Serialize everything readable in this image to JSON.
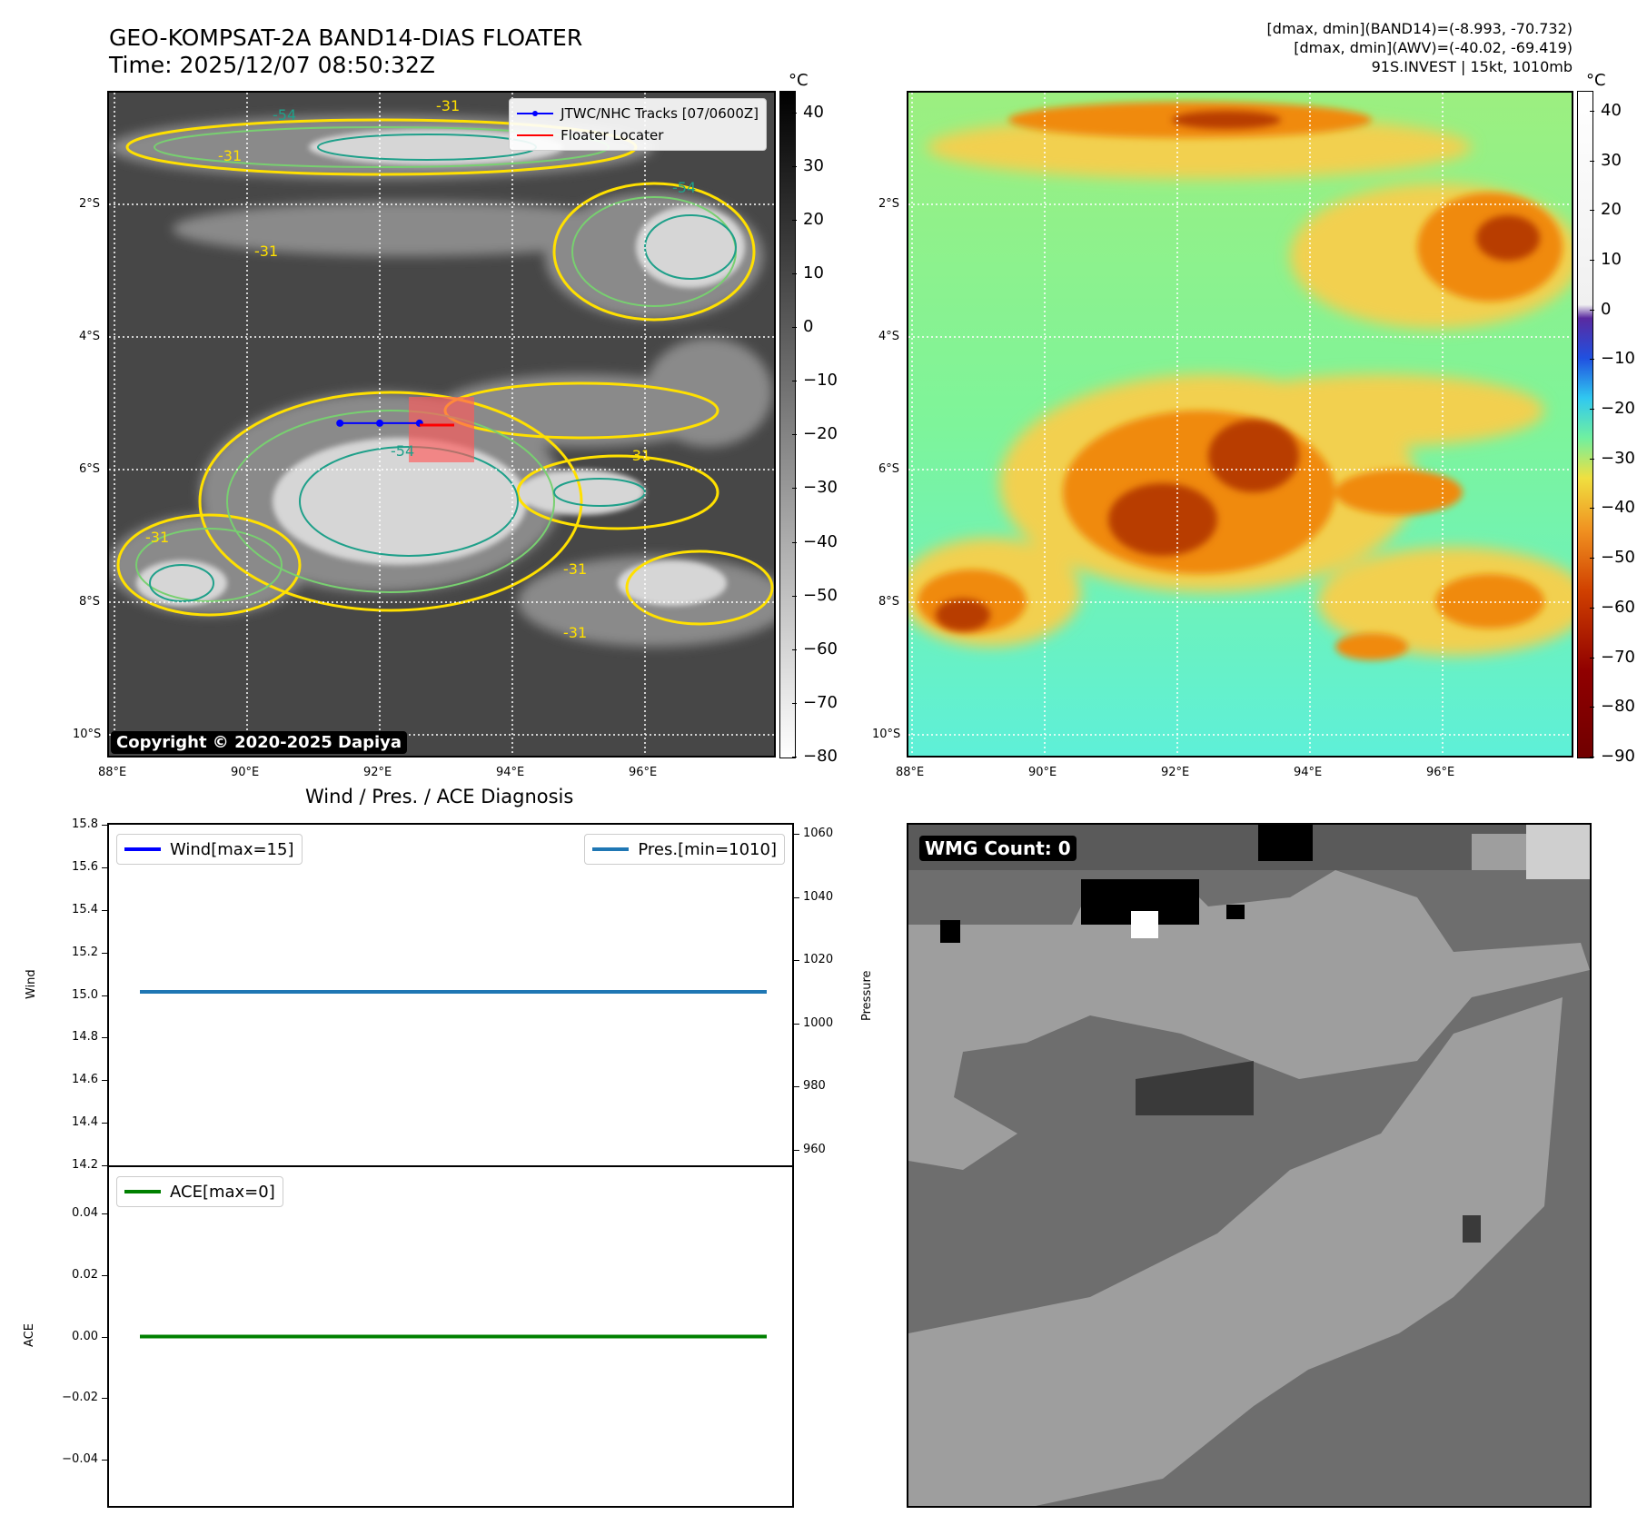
{
  "header": {
    "title_line1": "GEO-KOMPSAT-2A BAND14-DIAS FLOATER",
    "title_line2": "Time: 2025/12/07 08:50:32Z",
    "info_line1": "[dmax, dmin](BAND14)=(-8.993, -70.732)",
    "info_line2": "[dmax, dmin](AWV)=(-40.02, -69.419)",
    "info_line3": "91S.INVEST | 15kt, 1010mb"
  },
  "map_axes": {
    "lat_ticks": [
      "2°S",
      "4°S",
      "6°S",
      "8°S",
      "10°S"
    ],
    "lon_ticks": [
      "88°E",
      "90°E",
      "92°E",
      "94°E",
      "96°E"
    ]
  },
  "ir_panel": {
    "copyright": "Copyright © 2020-2025 Dapiya",
    "legend": [
      {
        "label": "JTWC/NHC Tracks [07/0600Z]",
        "color": "#0000ff"
      },
      {
        "label": "Floater Locater",
        "color": "#ff0000"
      }
    ],
    "contour_labels": [
      "-31",
      "-54"
    ],
    "track_points": [
      [
        91.4,
        -5.3
      ],
      [
        92.0,
        -5.3
      ],
      [
        92.6,
        -5.3
      ]
    ],
    "colorbar": {
      "unit": "°C",
      "ticks": [
        "40",
        "30",
        "20",
        "10",
        "0",
        "−10",
        "−20",
        "−30",
        "−40",
        "−50",
        "−60",
        "−70",
        "−80"
      ]
    }
  },
  "awv_panel": {
    "colorbar": {
      "unit": "°C",
      "ticks": [
        "40",
        "30",
        "20",
        "10",
        "0",
        "−10",
        "−20",
        "−30",
        "−40",
        "−50",
        "−60",
        "−70",
        "−80",
        "−90"
      ]
    }
  },
  "wmg_panel": {
    "badge": "WMG Count: 0"
  },
  "chart_data": [
    {
      "type": "line",
      "title": "Wind / Pres. / ACE Diagnosis",
      "ylabel": "Wind",
      "y2label": "Pressure",
      "ylim": [
        14.2,
        15.8
      ],
      "y2lim": [
        955,
        1063
      ],
      "yticks": [
        "15.8",
        "15.6",
        "15.4",
        "15.2",
        "15.0",
        "14.8",
        "14.6",
        "14.4",
        "14.2"
      ],
      "y2ticks": [
        "1060",
        "1040",
        "1020",
        "1000",
        "980",
        "960"
      ],
      "series": [
        {
          "name": "Wind[max=15]",
          "axis": "left",
          "color": "#0000ff",
          "values": [
            15,
            15
          ]
        },
        {
          "name": "Pres.[min=1010]",
          "axis": "right",
          "color": "#1f77b4",
          "values": [
            1010,
            1010
          ]
        }
      ]
    },
    {
      "type": "line",
      "ylabel": "ACE",
      "ylim": [
        -0.055,
        0.055
      ],
      "yticks": [
        "0.04",
        "0.02",
        "0.00",
        "−0.02",
        "−0.04"
      ],
      "series": [
        {
          "name": "ACE[max=0]",
          "color": "#008000",
          "values": [
            0,
            0
          ]
        }
      ]
    }
  ]
}
